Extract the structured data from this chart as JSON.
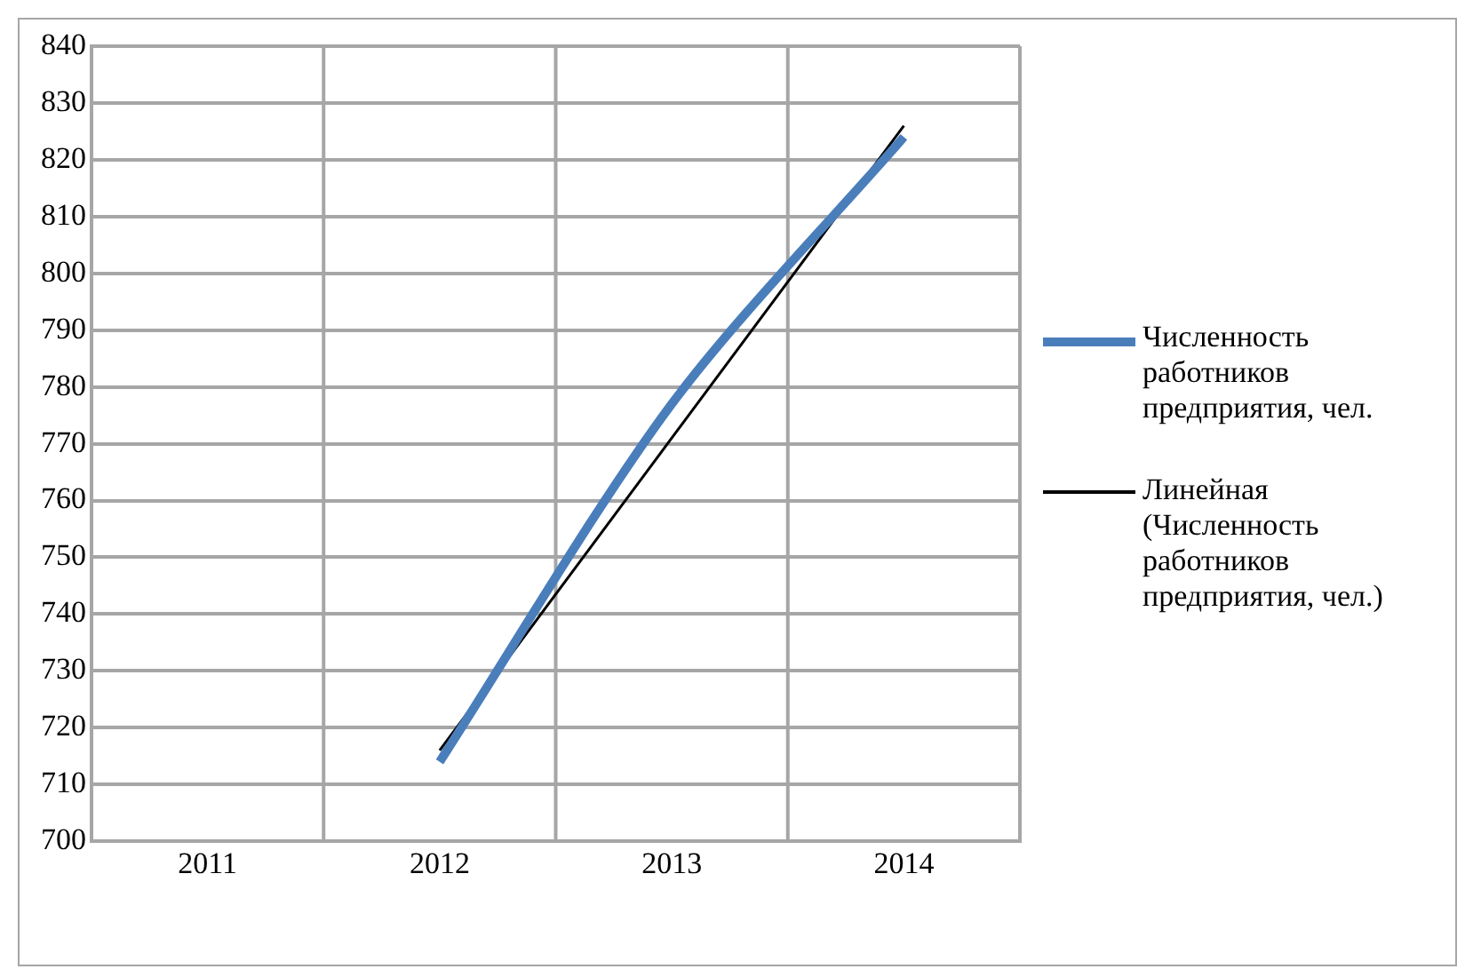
{
  "chart_data": {
    "type": "line",
    "categories": [
      "2011",
      "2012",
      "2013",
      "2014"
    ],
    "series": [
      {
        "name": "Численность работников предприятия, чел.",
        "color": "#4a7ebb",
        "values": [
          null,
          714,
          777,
          824
        ]
      },
      {
        "name": "Линейная (Численность работников предприятия, чел.)",
        "type": "line",
        "color": "#000000",
        "values": [
          null,
          716,
          771,
          826
        ]
      }
    ],
    "ylim": [
      700,
      840
    ],
    "yticks": [
      700,
      710,
      720,
      730,
      740,
      750,
      760,
      770,
      780,
      790,
      800,
      810,
      820,
      830,
      840
    ],
    "grid": true,
    "legend": "right",
    "marker": "none"
  }
}
